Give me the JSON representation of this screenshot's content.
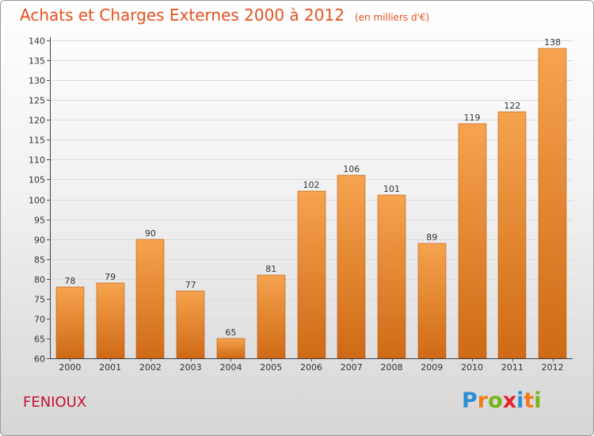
{
  "header": {
    "title": "Achats et Charges Externes 2000 à 2012",
    "unit": "(en milliers d'€)"
  },
  "footer": {
    "commune": "FENIOUX",
    "logo_letters": [
      {
        "ch": "P",
        "color": "#2a8fd6"
      },
      {
        "ch": "r",
        "color": "#f07d1a"
      },
      {
        "ch": "o",
        "color": "#7ab317"
      },
      {
        "ch": "x",
        "color": "#e3252b"
      },
      {
        "ch": "i",
        "color": "#2a8fd6"
      },
      {
        "ch": "t",
        "color": "#f07d1a"
      },
      {
        "ch": "i",
        "color": "#7ab317"
      }
    ]
  },
  "colors": {
    "title": "#e8501e",
    "commune": "#c8102e",
    "bar_light": "#f6a34e",
    "bar_dark": "#cf6a16",
    "bar_edge": "#b65a12"
  },
  "chart_data": {
    "type": "bar",
    "title": "Achats et Charges Externes 2000 à 2012",
    "subtitle": "(en milliers d'€)",
    "categories": [
      "2000",
      "2001",
      "2002",
      "2003",
      "2004",
      "2005",
      "2006",
      "2007",
      "2008",
      "2009",
      "2010",
      "2011",
      "2012"
    ],
    "values": [
      78,
      79,
      90,
      77,
      65,
      81,
      102,
      106,
      101,
      89,
      119,
      122,
      138
    ],
    "ylim": [
      60,
      140
    ],
    "yticks": [
      60,
      65,
      70,
      75,
      80,
      85,
      90,
      95,
      100,
      105,
      110,
      115,
      120,
      125,
      130,
      135,
      140
    ],
    "grid": true,
    "data_labels": true
  }
}
